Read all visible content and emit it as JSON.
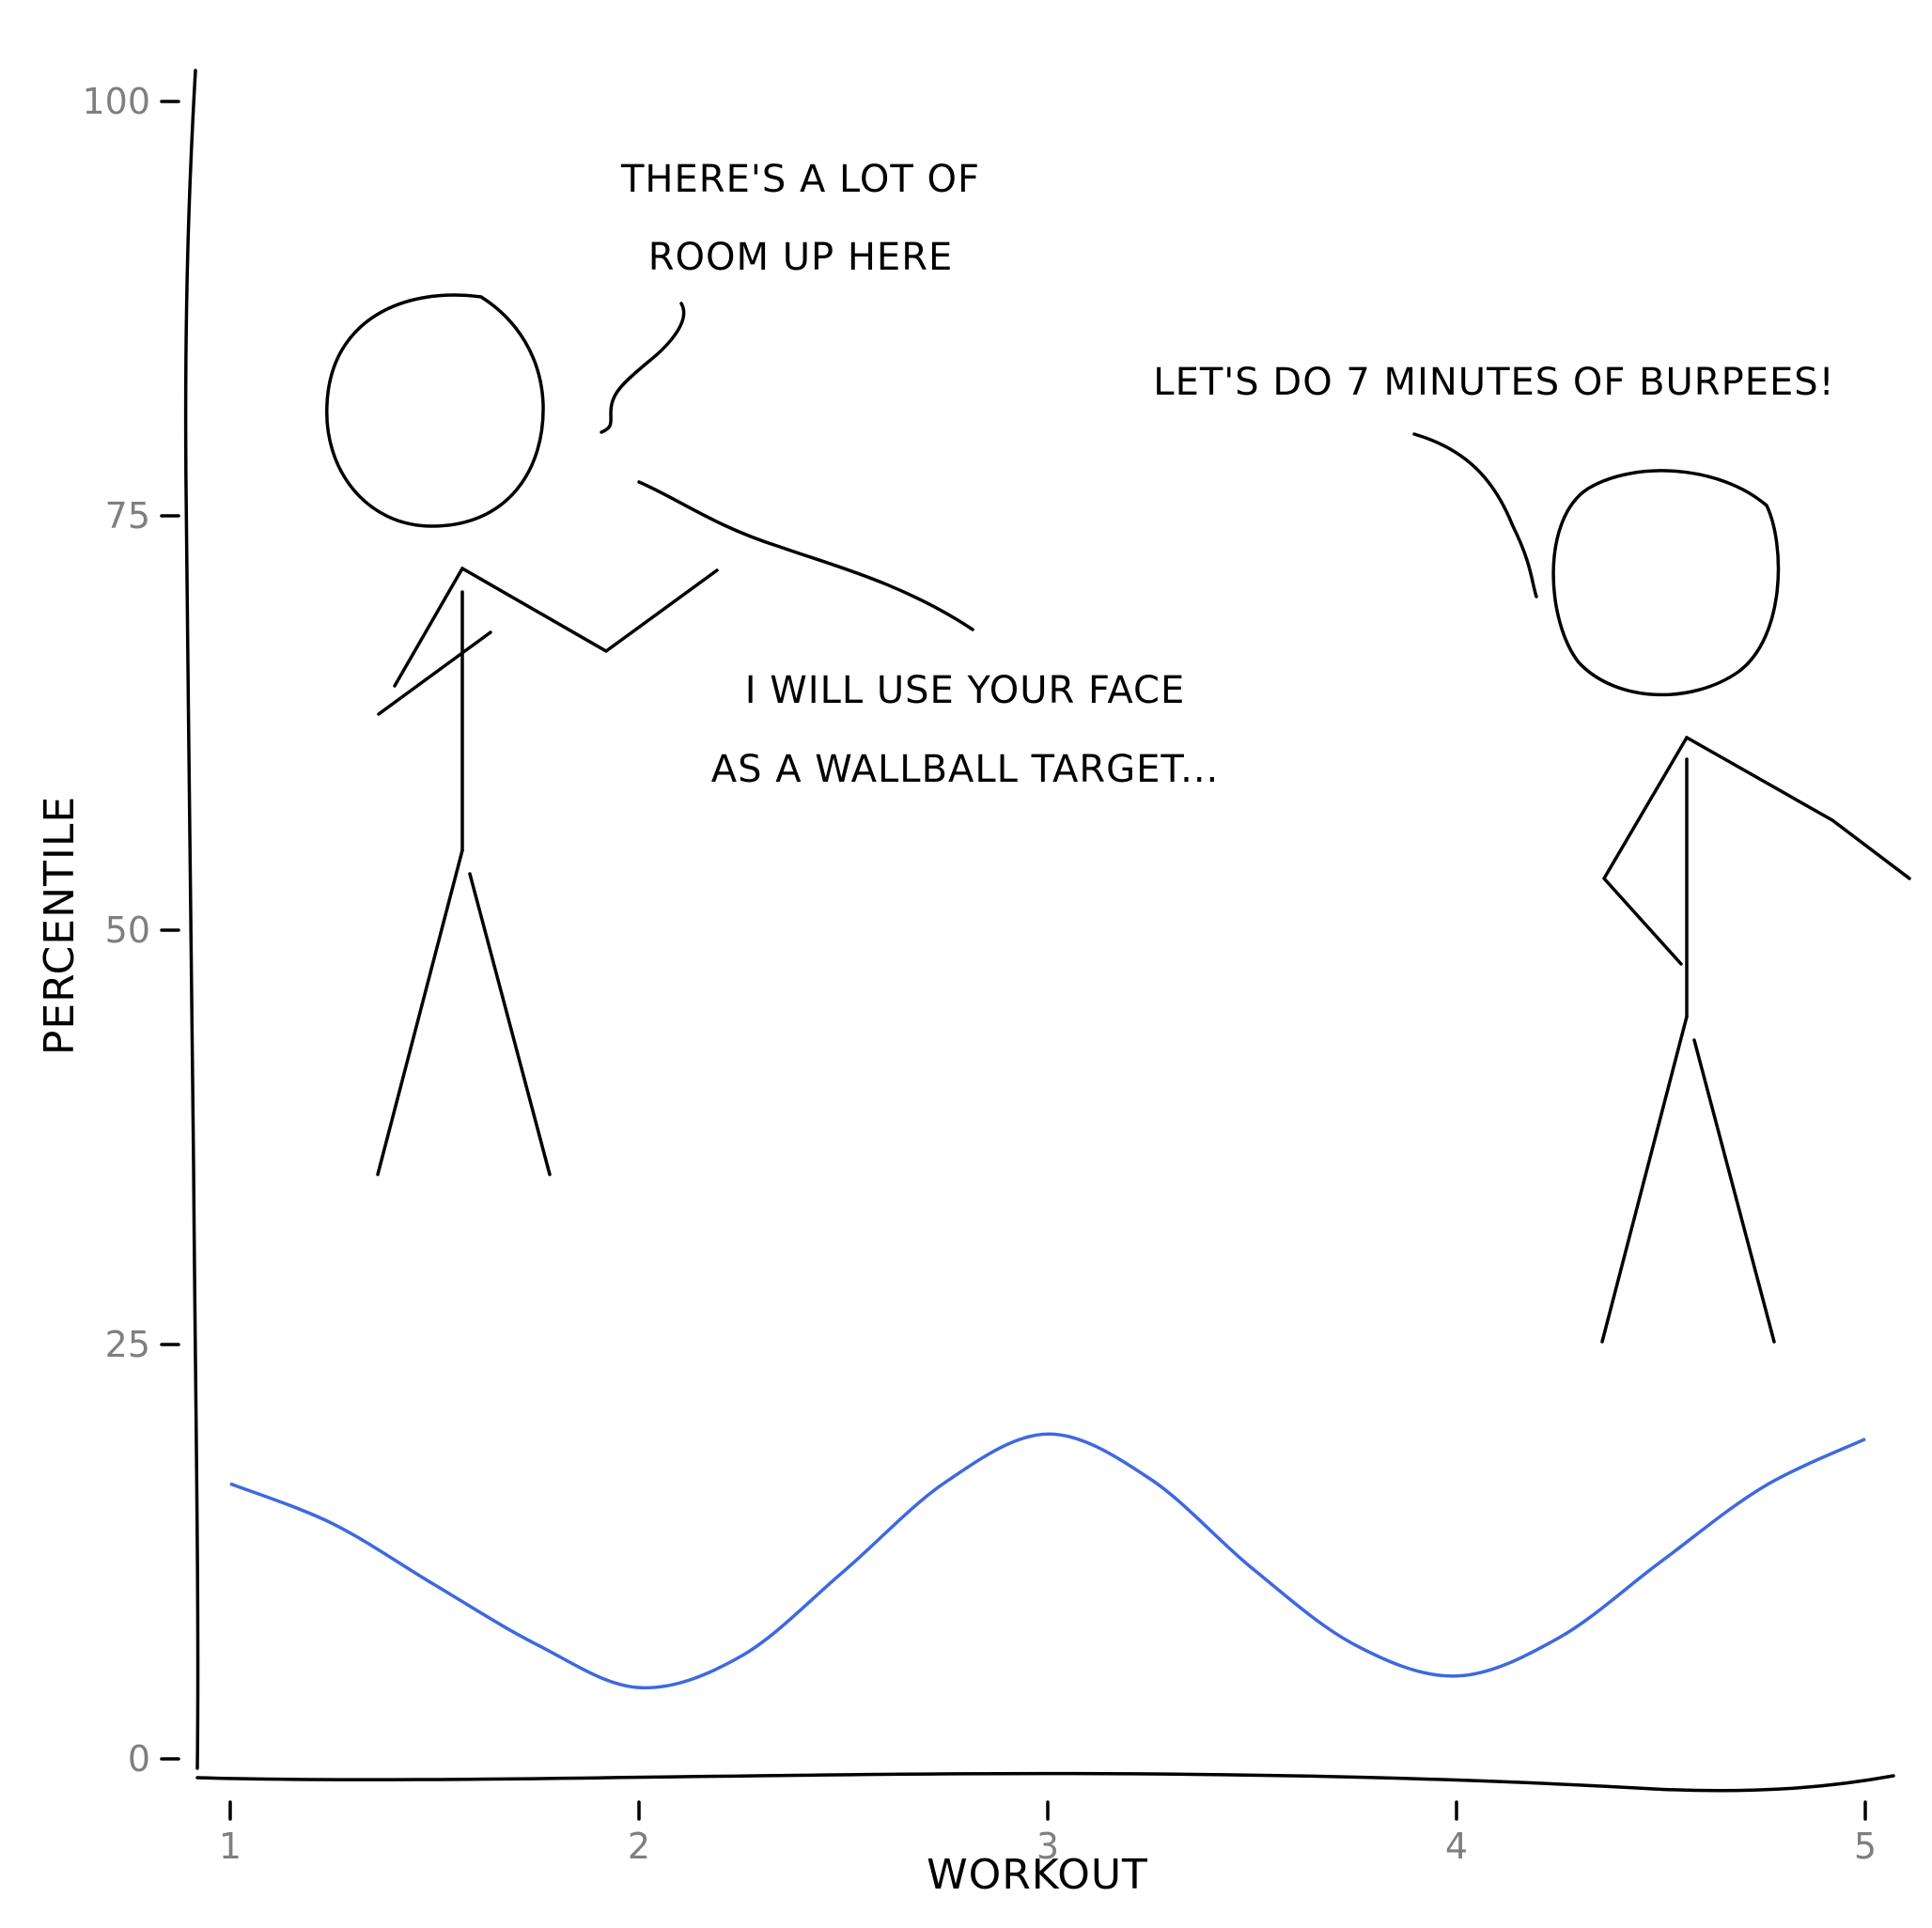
{
  "chart_data": {
    "type": "line",
    "xlabel": "WORKOUT",
    "ylabel": "PERCENTILE",
    "xlim": [
      0.92,
      5.08
    ],
    "ylim": [
      -2,
      104
    ],
    "xticks": [
      1,
      2,
      3,
      4,
      5
    ],
    "yticks": [
      0,
      25,
      50,
      75,
      100
    ],
    "grid": false,
    "series": [
      {
        "color": "#3f68e0",
        "x": [
          1.0,
          1.25,
          1.5,
          1.75,
          2.0,
          2.25,
          2.5,
          2.75,
          3.0,
          3.25,
          3.5,
          3.75,
          4.0,
          4.25,
          4.5,
          4.75,
          5.0
        ],
        "y": [
          16.6,
          14.2,
          10.5,
          6.9,
          4.3,
          6.2,
          11.3,
          16.7,
          19.6,
          16.9,
          11.5,
          6.9,
          5.0,
          7.3,
          11.9,
          16.4,
          19.3
        ]
      }
    ],
    "annotations": [
      {
        "lines": [
          "THERE'S A LOT OF",
          "ROOM UP HERE"
        ]
      },
      {
        "lines": [
          "I WILL USE YOUR FACE",
          "AS A WALLBALL TARGET..."
        ]
      },
      {
        "lines": [
          "LET'S DO 7 MINUTES OF BURPEES!"
        ]
      }
    ]
  }
}
